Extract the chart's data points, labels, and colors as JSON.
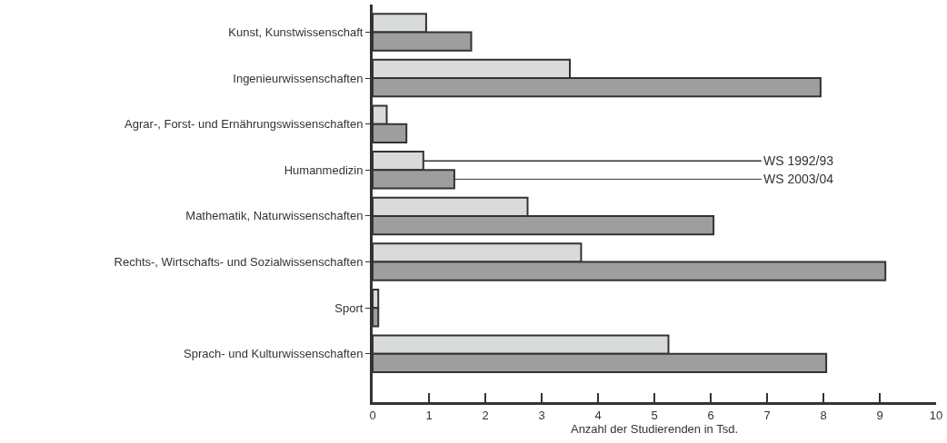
{
  "chart_data": {
    "type": "bar",
    "orientation": "horizontal",
    "xlabel": "Anzahl der Studierenden in Tsd.",
    "categories": [
      "Kunst, Kunstwissenschaft",
      "Ingenieurwissenschaften",
      "Agrar-, Forst- und Ernährungswissenschaften",
      "Humanmedizin",
      "Mathematik, Naturwissenschaften",
      "Rechts-, Wirtschafts- und Sozialwissenschaften",
      "Sport",
      "Sprach- und Kulturwissenschaften"
    ],
    "series": [
      {
        "name": "WS 1992/93",
        "color": "#d9dbda",
        "values": [
          0.95,
          3.5,
          0.25,
          0.9,
          2.75,
          3.7,
          0.1,
          5.25
        ]
      },
      {
        "name": "WS 2003/04",
        "color": "#9e9e9e",
        "values": [
          1.75,
          7.95,
          0.6,
          1.45,
          6.05,
          9.1,
          0.1,
          8.05
        ]
      }
    ],
    "xlim": [
      0,
      10
    ],
    "xticks": [
      0,
      1,
      2,
      3,
      4,
      5,
      6,
      7,
      8,
      9,
      10
    ],
    "legend": false
  }
}
